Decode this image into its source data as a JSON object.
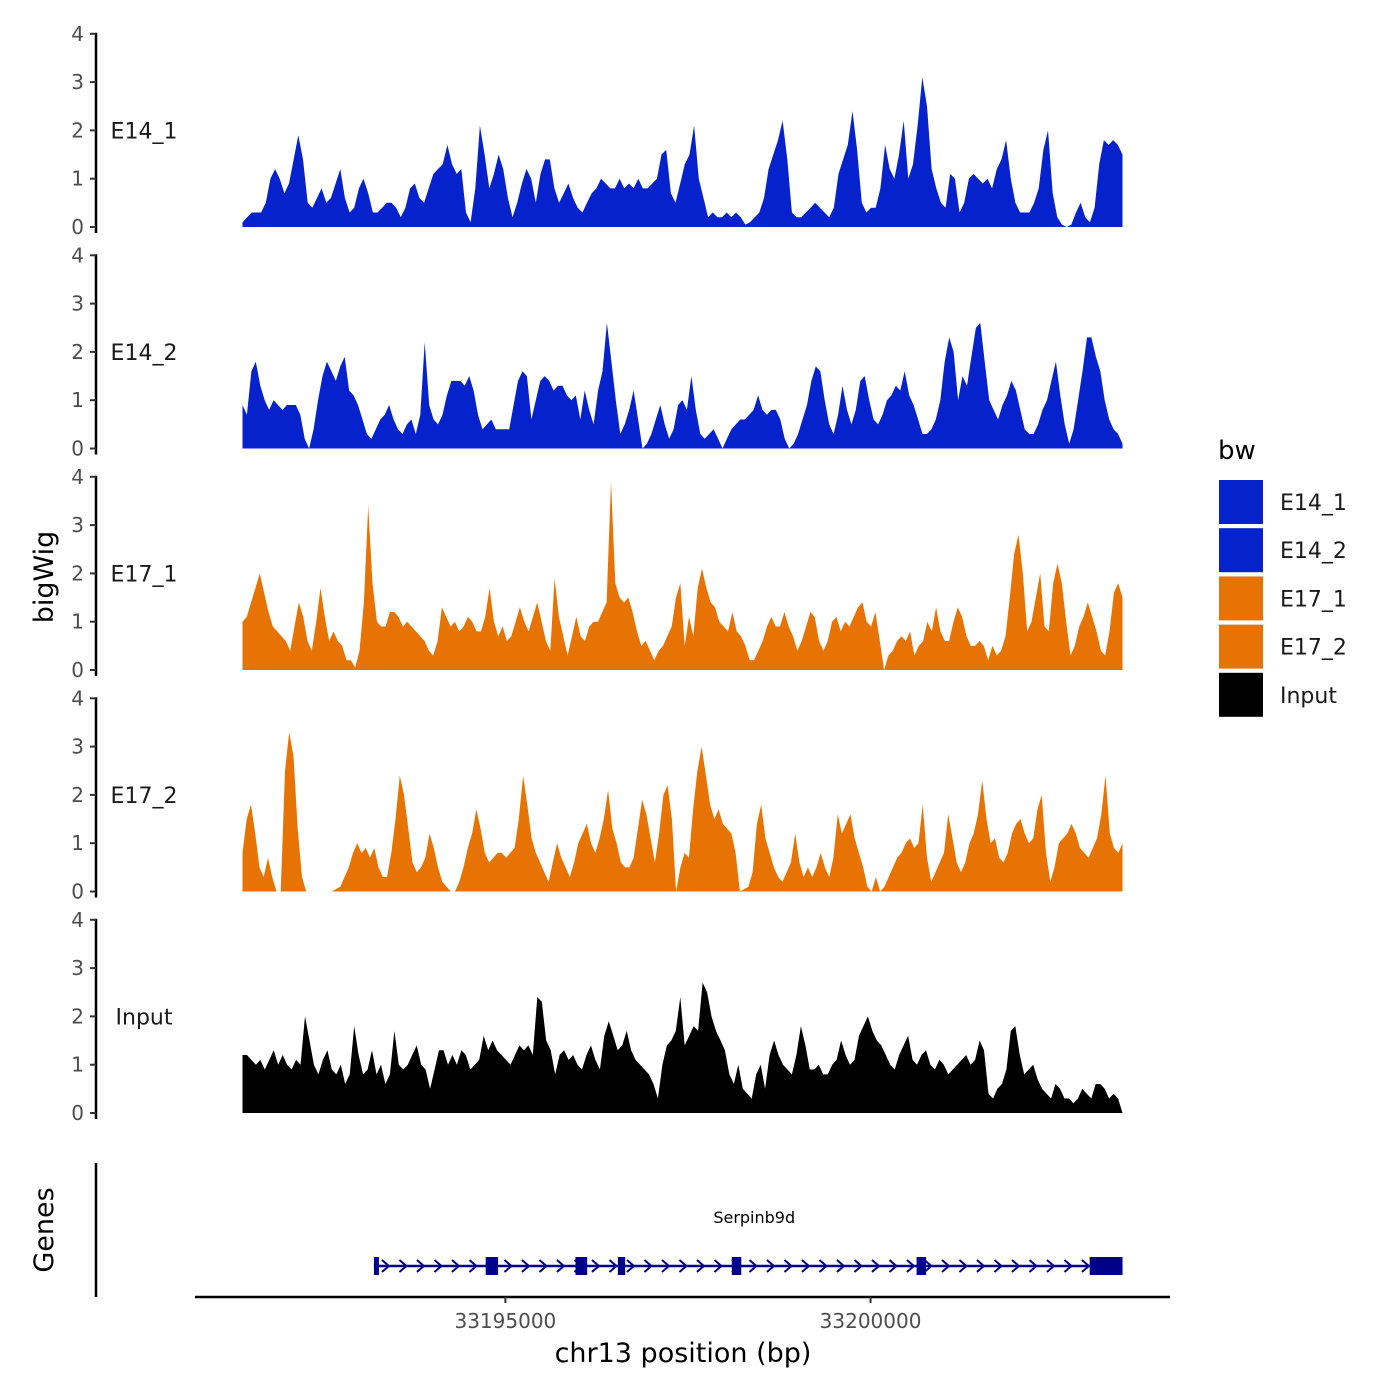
{
  "chart_data": {
    "type": "area",
    "x_axis": {
      "label": "chr13 position (bp)",
      "ticks": [
        "33195000",
        "33200000"
      ],
      "tick_values": [
        33195000,
        33200000
      ],
      "xlim": [
        33190750,
        33204100
      ]
    },
    "y_axis": {
      "label": "bigWig",
      "ylim": [
        0,
        4
      ],
      "ticks": [
        "0",
        "1",
        "2",
        "3",
        "4"
      ]
    },
    "x_start": 33191400,
    "x_end": 33203450,
    "tracks": [
      {
        "name": "E14_1",
        "color": "#0522CC",
        "values": [
          0.1,
          0.2,
          0.3,
          0.3,
          0.3,
          0.5,
          1.0,
          1.2,
          1.0,
          0.7,
          0.9,
          1.4,
          1.9,
          1.4,
          0.5,
          0.4,
          0.6,
          0.8,
          0.5,
          0.6,
          0.9,
          1.2,
          0.6,
          0.3,
          0.4,
          0.8,
          1.0,
          0.7,
          0.3,
          0.3,
          0.4,
          0.5,
          0.5,
          0.4,
          0.2,
          0.4,
          0.8,
          0.9,
          0.6,
          0.5,
          0.8,
          1.1,
          1.2,
          1.3,
          1.7,
          1.3,
          1.1,
          1.2,
          0.3,
          0.1,
          0.8,
          2.1,
          1.5,
          0.8,
          1.1,
          1.5,
          1.2,
          0.6,
          0.2,
          0.5,
          0.9,
          1.2,
          1.0,
          0.5,
          1.1,
          1.4,
          1.4,
          0.8,
          0.5,
          0.7,
          0.9,
          0.6,
          0.4,
          0.3,
          0.5,
          0.7,
          0.8,
          1.0,
          0.9,
          0.8,
          0.8,
          1.0,
          0.8,
          0.9,
          0.8,
          1.0,
          0.8,
          0.8,
          0.9,
          1.0,
          1.5,
          1.6,
          0.7,
          0.5,
          0.9,
          1.3,
          1.5,
          2.1,
          1.0,
          0.6,
          0.2,
          0.3,
          0.2,
          0.2,
          0.3,
          0.2,
          0.3,
          0.2,
          0.05,
          0.1,
          0.2,
          0.3,
          0.6,
          1.2,
          1.5,
          1.8,
          2.2,
          1.4,
          0.3,
          0.2,
          0.2,
          0.3,
          0.4,
          0.5,
          0.4,
          0.3,
          0.2,
          0.4,
          1.1,
          1.4,
          1.7,
          2.4,
          1.6,
          0.5,
          0.3,
          0.4,
          0.4,
          0.8,
          1.7,
          1.2,
          1.0,
          1.5,
          2.2,
          1.0,
          1.3,
          2.1,
          3.1,
          2.5,
          1.2,
          0.8,
          0.5,
          0.4,
          1.1,
          1.0,
          0.3,
          0.5,
          1.0,
          1.1,
          1.0,
          0.9,
          1.0,
          0.8,
          1.2,
          1.4,
          1.8,
          1.0,
          0.5,
          0.3,
          0.3,
          0.3,
          0.5,
          0.8,
          1.6,
          2.0,
          0.7,
          0.2,
          0.05,
          0.0,
          0.05,
          0.3,
          0.5,
          0.2,
          0.1,
          0.4,
          1.3,
          1.8,
          1.7,
          1.8,
          1.7,
          1.5
        ]
      },
      {
        "name": "E14_2",
        "color": "#0522CC",
        "values": [
          0.9,
          0.7,
          1.6,
          1.8,
          1.3,
          1.0,
          0.8,
          1.0,
          0.9,
          0.8,
          0.9,
          0.9,
          0.9,
          0.7,
          0.2,
          0.0,
          0.4,
          1.0,
          1.5,
          1.8,
          1.6,
          1.4,
          1.7,
          1.9,
          1.2,
          1.1,
          0.9,
          0.6,
          0.3,
          0.2,
          0.4,
          0.6,
          0.7,
          0.9,
          0.6,
          0.4,
          0.3,
          0.5,
          0.6,
          0.3,
          0.7,
          2.2,
          0.9,
          0.6,
          0.5,
          0.7,
          1.1,
          1.4,
          1.4,
          1.4,
          1.3,
          1.5,
          1.2,
          0.7,
          0.4,
          0.5,
          0.6,
          0.4,
          0.4,
          0.4,
          0.4,
          0.9,
          1.4,
          1.6,
          1.5,
          0.6,
          1.0,
          1.4,
          1.5,
          1.4,
          1.2,
          1.3,
          1.3,
          1.1,
          1.0,
          1.1,
          0.6,
          1.2,
          0.8,
          0.5,
          1.2,
          1.6,
          2.6,
          1.8,
          1.0,
          0.3,
          0.5,
          0.8,
          1.2,
          0.6,
          0.0,
          0.1,
          0.3,
          0.6,
          0.9,
          0.5,
          0.2,
          0.4,
          0.9,
          1.0,
          0.8,
          1.5,
          0.8,
          0.3,
          0.2,
          0.3,
          0.4,
          0.2,
          0.0,
          0.2,
          0.4,
          0.5,
          0.6,
          0.6,
          0.7,
          0.8,
          1.1,
          0.8,
          0.7,
          0.8,
          0.8,
          0.6,
          0.2,
          0.0,
          0.1,
          0.3,
          0.6,
          0.9,
          1.4,
          1.7,
          1.6,
          1.0,
          0.5,
          0.3,
          0.7,
          1.3,
          0.8,
          0.5,
          0.8,
          1.4,
          1.5,
          1.0,
          0.6,
          0.5,
          0.7,
          1.0,
          1.1,
          1.3,
          1.2,
          1.6,
          1.1,
          0.9,
          0.6,
          0.3,
          0.3,
          0.4,
          0.6,
          1.0,
          1.8,
          2.3,
          2.0,
          1.0,
          1.5,
          1.3,
          1.9,
          2.5,
          2.6,
          1.8,
          1.0,
          0.8,
          0.6,
          0.9,
          1.1,
          1.4,
          1.2,
          0.8,
          0.4,
          0.3,
          0.3,
          0.5,
          0.8,
          1.0,
          1.4,
          1.8,
          1.1,
          0.5,
          0.1,
          0.4,
          1.0,
          1.6,
          2.3,
          2.3,
          1.9,
          1.6,
          1.0,
          0.6,
          0.4,
          0.3,
          0.1
        ]
      },
      {
        "name": "E17_1",
        "color": "#E87305",
        "values": [
          1.0,
          1.1,
          1.4,
          1.7,
          2.0,
          1.6,
          1.2,
          0.9,
          0.8,
          0.7,
          0.6,
          0.4,
          0.9,
          1.4,
          1.1,
          0.6,
          0.4,
          1.0,
          1.7,
          1.1,
          0.6,
          0.8,
          0.6,
          0.5,
          0.2,
          0.2,
          0.05,
          0.4,
          1.4,
          3.4,
          1.8,
          1.0,
          0.9,
          0.9,
          1.2,
          1.2,
          1.1,
          0.9,
          1.0,
          0.9,
          0.8,
          0.7,
          0.6,
          0.4,
          0.3,
          0.6,
          1.3,
          1.1,
          0.9,
          1.0,
          0.8,
          0.9,
          1.1,
          1.0,
          0.8,
          0.8,
          1.1,
          1.7,
          1.0,
          0.7,
          0.9,
          0.6,
          0.7,
          1.0,
          1.3,
          1.0,
          0.8,
          1.1,
          1.4,
          1.0,
          0.6,
          0.4,
          1.9,
          1.1,
          0.7,
          0.3,
          0.7,
          1.1,
          0.7,
          0.6,
          0.9,
          1.0,
          1.0,
          1.2,
          1.4,
          3.9,
          1.8,
          1.5,
          1.4,
          1.5,
          1.2,
          0.8,
          0.5,
          0.6,
          0.4,
          0.2,
          0.4,
          0.5,
          0.7,
          0.9,
          1.5,
          1.8,
          0.5,
          1.1,
          0.7,
          1.7,
          2.1,
          1.7,
          1.4,
          1.3,
          1.0,
          0.9,
          0.8,
          1.2,
          0.8,
          0.7,
          0.5,
          0.2,
          0.2,
          0.4,
          0.6,
          0.9,
          1.1,
          0.9,
          0.9,
          1.2,
          0.9,
          0.7,
          0.4,
          0.6,
          0.9,
          1.2,
          1.1,
          0.6,
          0.4,
          0.6,
          1.0,
          1.1,
          0.8,
          1.0,
          0.9,
          1.1,
          1.3,
          1.4,
          1.0,
          0.9,
          1.2,
          0.6,
          0.0,
          0.3,
          0.4,
          0.6,
          0.7,
          0.6,
          0.8,
          0.3,
          0.5,
          0.6,
          1.0,
          0.8,
          1.3,
          0.8,
          0.6,
          0.6,
          1.0,
          1.3,
          1.1,
          0.7,
          0.5,
          0.5,
          0.6,
          0.5,
          0.2,
          0.5,
          0.3,
          0.4,
          0.7,
          1.5,
          2.4,
          2.8,
          2.0,
          0.8,
          1.0,
          1.5,
          2.0,
          0.9,
          0.8,
          1.8,
          2.2,
          1.8,
          1.0,
          0.3,
          0.5,
          0.9,
          1.1,
          1.4,
          1.1,
          0.8,
          0.4,
          0.3,
          0.8,
          1.6,
          1.8,
          1.5
        ]
      },
      {
        "name": "E17_2",
        "color": "#E87305",
        "values": [
          0.8,
          1.5,
          1.8,
          1.2,
          0.5,
          0.3,
          0.7,
          0.3,
          0.0,
          0.0,
          2.5,
          3.3,
          2.8,
          1.3,
          0.3,
          0.0,
          0.0,
          0.0,
          0.0,
          0.0,
          0.0,
          0.0,
          0.05,
          0.1,
          0.3,
          0.5,
          0.8,
          1.0,
          0.8,
          0.9,
          0.7,
          0.9,
          0.5,
          0.3,
          0.3,
          0.8,
          1.5,
          2.4,
          2.0,
          1.3,
          0.6,
          0.4,
          0.5,
          0.7,
          1.2,
          0.9,
          0.5,
          0.2,
          0.1,
          0.0,
          0.0,
          0.2,
          0.5,
          0.9,
          1.2,
          1.7,
          1.3,
          0.8,
          0.6,
          0.7,
          0.8,
          0.8,
          0.7,
          0.8,
          0.9,
          1.5,
          2.4,
          1.8,
          1.1,
          0.8,
          0.6,
          0.4,
          0.2,
          0.6,
          1.0,
          0.7,
          0.5,
          0.3,
          0.6,
          1.0,
          1.2,
          1.4,
          1.0,
          0.8,
          1.1,
          1.5,
          2.1,
          1.3,
          1.0,
          0.6,
          0.5,
          0.5,
          0.7,
          1.3,
          1.9,
          1.6,
          1.1,
          0.6,
          1.2,
          2.0,
          2.2,
          1.5,
          0.0,
          0.5,
          0.8,
          0.7,
          1.7,
          2.5,
          3.0,
          2.4,
          1.8,
          1.5,
          1.7,
          1.4,
          1.3,
          1.2,
          0.8,
          0.0,
          0.05,
          0.1,
          0.4,
          1.4,
          1.8,
          1.1,
          0.8,
          0.5,
          0.3,
          0.2,
          0.4,
          0.6,
          1.2,
          0.6,
          0.3,
          0.5,
          0.3,
          0.5,
          0.8,
          0.5,
          0.3,
          0.7,
          1.6,
          1.2,
          1.4,
          1.6,
          1.1,
          0.8,
          0.5,
          0.1,
          0.0,
          0.3,
          0.0,
          0.1,
          0.3,
          0.5,
          0.7,
          0.8,
          1.0,
          1.1,
          0.9,
          1.0,
          1.8,
          0.7,
          0.2,
          0.4,
          0.6,
          0.8,
          1.6,
          1.1,
          0.6,
          0.4,
          0.6,
          1.0,
          1.2,
          1.6,
          2.3,
          1.5,
          1.0,
          1.1,
          0.7,
          0.6,
          0.8,
          1.2,
          1.4,
          1.5,
          1.2,
          1.0,
          1.1,
          1.7,
          2.0,
          0.8,
          0.2,
          0.5,
          1.0,
          1.1,
          1.2,
          1.4,
          1.2,
          0.9,
          0.8,
          0.7,
          0.9,
          1.1,
          1.6,
          2.4,
          1.2,
          0.9,
          0.8,
          1.0
        ]
      },
      {
        "name": "Input",
        "color": "#000000",
        "values": [
          1.2,
          1.2,
          1.1,
          1.0,
          1.1,
          0.9,
          1.1,
          1.3,
          1.0,
          1.2,
          1.0,
          0.9,
          1.1,
          1.0,
          2.0,
          1.5,
          1.0,
          0.8,
          1.1,
          1.3,
          0.9,
          0.8,
          1.0,
          0.6,
          0.8,
          1.8,
          1.2,
          0.8,
          0.9,
          1.3,
          0.8,
          1.0,
          0.6,
          0.8,
          1.7,
          1.0,
          0.9,
          1.0,
          1.2,
          1.4,
          1.0,
          0.9,
          0.5,
          0.9,
          1.3,
          1.3,
          1.0,
          1.2,
          1.0,
          1.3,
          1.2,
          0.9,
          1.0,
          1.1,
          1.6,
          1.3,
          1.5,
          1.3,
          1.2,
          1.1,
          1.0,
          1.2,
          1.4,
          1.3,
          1.4,
          1.2,
          2.4,
          2.3,
          1.5,
          1.3,
          0.8,
          1.2,
          1.3,
          1.1,
          1.2,
          1.0,
          0.9,
          1.2,
          1.4,
          1.1,
          0.9,
          1.6,
          1.9,
          1.6,
          1.3,
          1.4,
          1.7,
          1.3,
          1.1,
          1.0,
          0.9,
          0.8,
          0.6,
          0.3,
          1.0,
          1.4,
          1.5,
          1.7,
          2.4,
          1.4,
          1.6,
          1.8,
          1.7,
          2.7,
          2.5,
          2.0,
          1.7,
          1.5,
          1.3,
          0.8,
          0.6,
          1.0,
          0.5,
          0.4,
          0.3,
          0.8,
          1.0,
          0.5,
          1.2,
          1.5,
          1.2,
          1.0,
          0.9,
          0.8,
          1.2,
          1.8,
          1.4,
          0.9,
          0.9,
          1.0,
          0.8,
          0.8,
          1.0,
          1.1,
          1.5,
          1.2,
          1.0,
          1.1,
          1.6,
          1.8,
          2.0,
          1.7,
          1.5,
          1.4,
          1.2,
          1.0,
          0.9,
          1.2,
          1.4,
          1.6,
          1.1,
          1.0,
          1.2,
          1.3,
          1.0,
          0.9,
          1.1,
          1.0,
          0.8,
          0.9,
          1.0,
          1.1,
          1.2,
          1.0,
          1.1,
          1.5,
          1.3,
          0.4,
          0.3,
          0.5,
          0.6,
          0.9,
          1.7,
          1.8,
          1.2,
          0.8,
          0.9,
          1.0,
          0.7,
          0.5,
          0.4,
          0.3,
          0.6,
          0.5,
          0.3,
          0.3,
          0.2,
          0.3,
          0.5,
          0.4,
          0.3,
          0.6,
          0.6,
          0.5,
          0.3,
          0.4,
          0.3,
          0.0
        ]
      }
    ],
    "legend": {
      "title": "bw",
      "position": "right",
      "entries": [
        {
          "label": "E14_1",
          "color": "#0522CC"
        },
        {
          "label": "E14_2",
          "color": "#0522CC"
        },
        {
          "label": "E17_1",
          "color": "#E87305"
        },
        {
          "label": "E17_2",
          "color": "#E87305"
        },
        {
          "label": "Input",
          "color": "#000000"
        }
      ]
    },
    "genes": {
      "panel_label": "Genes",
      "color": "#00008B",
      "items": [
        {
          "name": "Serpinb9d",
          "strand": "+",
          "start": 33193200,
          "end": 33203450,
          "exons": [
            [
              33193200,
              33193260
            ],
            [
              33194730,
              33194900
            ],
            [
              33195960,
              33196120
            ],
            [
              33196540,
              33196640
            ],
            [
              33198100,
              33198230
            ],
            [
              33200630,
              33200760
            ],
            [
              33203000,
              33203450
            ]
          ]
        }
      ]
    }
  }
}
